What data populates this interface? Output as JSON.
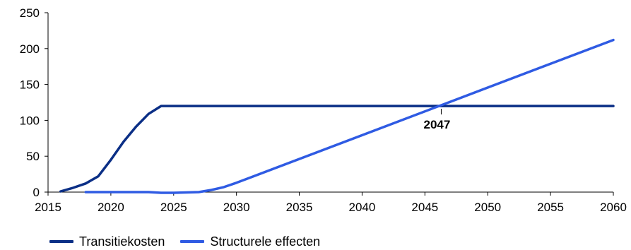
{
  "colors": {
    "transitiekosten": "#0b2f86",
    "structurele_effecten": "#2f5be3",
    "axis": "#000000"
  },
  "annotation": {
    "label": "2047",
    "x": 2046.3,
    "y": 120
  },
  "chart_data": {
    "type": "line",
    "title": "",
    "xlabel": "",
    "ylabel": "",
    "xlim": [
      2015,
      2060
    ],
    "ylim": [
      0,
      250
    ],
    "x_ticks": [
      2015,
      2020,
      2025,
      2030,
      2035,
      2040,
      2045,
      2050,
      2055,
      2060
    ],
    "y_ticks": [
      0,
      50,
      100,
      150,
      200,
      250
    ],
    "grid": false,
    "legend_position": "bottom-left",
    "series": [
      {
        "name": "Transitiekosten",
        "x": [
          2016,
          2017,
          2018,
          2019,
          2020,
          2021,
          2022,
          2023,
          2024,
          2025,
          2030,
          2035,
          2040,
          2045,
          2050,
          2055,
          2060
        ],
        "values": [
          1,
          6,
          12,
          22,
          45,
          70,
          91,
          109,
          120,
          120,
          120,
          120,
          120,
          120,
          120,
          120,
          120
        ]
      },
      {
        "name": "Structurele effecten",
        "x": [
          2018,
          2020,
          2023,
          2024,
          2025,
          2026,
          2027,
          2028,
          2029,
          2030,
          2060
        ],
        "values": [
          0,
          0,
          0,
          -1,
          -1,
          -0.5,
          0,
          3,
          7,
          13,
          212
        ]
      }
    ]
  }
}
